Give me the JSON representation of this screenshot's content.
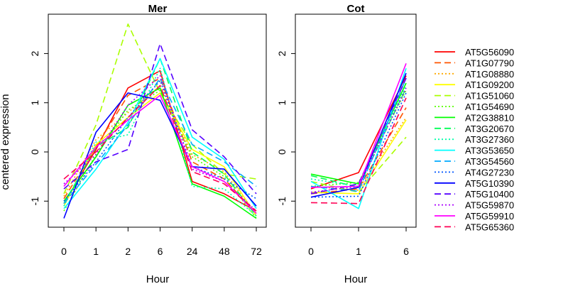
{
  "chart_data": {
    "type": "line",
    "ylabel": "centered expression",
    "xlabel": "Hour",
    "yticks": [
      -1,
      0,
      1,
      2
    ],
    "ylim": [
      -1.53,
      2.8
    ],
    "legend_position": "right",
    "panels": [
      {
        "title": "Mer",
        "x": [
          "0",
          "1",
          "2",
          "6",
          "24",
          "48",
          "72"
        ]
      },
      {
        "title": "Cot",
        "x": [
          "0",
          "1",
          "6"
        ]
      }
    ],
    "series": [
      {
        "name": "AT5G56090",
        "color": "#FF0000",
        "dash": "solid",
        "mer": [
          -1.05,
          0.05,
          1.3,
          1.65,
          -0.6,
          -0.85,
          -1.2
        ],
        "cot": [
          -0.75,
          -0.42,
          1.55
        ]
      },
      {
        "name": "AT1G07790",
        "color": "#FF5500",
        "dash": "dashed",
        "mer": [
          -0.95,
          0.1,
          1.15,
          1.5,
          -0.2,
          -0.55,
          -1.25
        ],
        "cot": [
          -0.85,
          -0.75,
          0.9
        ]
      },
      {
        "name": "AT1G08880",
        "color": "#FFAA00",
        "dash": "dotted",
        "mer": [
          -0.9,
          0.25,
          0.8,
          1.35,
          -0.05,
          -0.4,
          -1.3
        ],
        "cot": [
          -0.7,
          -0.78,
          0.7
        ]
      },
      {
        "name": "AT1G09200",
        "color": "#FFFF00",
        "dash": "solid",
        "mer": [
          -1.1,
          0.15,
          0.7,
          1.2,
          0.05,
          -0.3,
          -1.3
        ],
        "cot": [
          -0.82,
          -0.85,
          0.65
        ]
      },
      {
        "name": "AT1G51060",
        "color": "#AAFF00",
        "dash": "dashed",
        "mer": [
          -0.85,
          0.55,
          2.6,
          1.2,
          0.15,
          -0.45,
          -0.55
        ],
        "cot": [
          -0.6,
          -0.82,
          0.3
        ]
      },
      {
        "name": "AT1G54690",
        "color": "#55FF00",
        "dash": "dotted",
        "mer": [
          -1.2,
          -0.05,
          0.85,
          1.25,
          -0.1,
          -0.5,
          -1.35
        ],
        "cot": [
          -0.7,
          -0.62,
          1.25
        ]
      },
      {
        "name": "AT2G38810",
        "color": "#00FF00",
        "dash": "solid",
        "mer": [
          -1.0,
          -0.1,
          0.95,
          1.3,
          -0.65,
          -0.9,
          -1.35
        ],
        "cot": [
          -0.45,
          -0.65,
          1.4
        ]
      },
      {
        "name": "AT3G20670",
        "color": "#00FF55",
        "dash": "dashed",
        "mer": [
          -1.05,
          0.1,
          0.5,
          1.9,
          0.0,
          -0.45,
          -1.3
        ],
        "cot": [
          -0.48,
          -0.72,
          1.3
        ]
      },
      {
        "name": "AT3G27360",
        "color": "#00FFAA",
        "dash": "dotted",
        "mer": [
          -1.1,
          0.2,
          0.35,
          1.7,
          -0.7,
          -0.75,
          -1.3
        ],
        "cot": [
          -0.55,
          -0.7,
          1.35
        ]
      },
      {
        "name": "AT3G53650",
        "color": "#00FFFF",
        "dash": "solid",
        "mer": [
          -1.15,
          -0.35,
          0.6,
          1.9,
          0.3,
          -0.15,
          -1.15
        ],
        "cot": [
          -0.6,
          -1.15,
          1.7
        ]
      },
      {
        "name": "AT3G54560",
        "color": "#00AAFF",
        "dash": "dashed",
        "mer": [
          -1.05,
          -0.25,
          0.55,
          1.5,
          0.15,
          -0.2,
          -0.7
        ],
        "cot": [
          -0.7,
          -0.8,
          1.5
        ]
      },
      {
        "name": "AT4G27230",
        "color": "#0055FF",
        "dash": "dotted",
        "mer": [
          -1.0,
          -0.2,
          0.7,
          1.45,
          -0.3,
          -0.55,
          -0.95
        ],
        "cot": [
          -0.92,
          -0.9,
          1.2
        ]
      },
      {
        "name": "AT5G10390",
        "color": "#0000FF",
        "dash": "solid",
        "mer": [
          -1.35,
          0.4,
          1.2,
          1.05,
          -0.3,
          -0.35,
          -1.1
        ],
        "cot": [
          -0.92,
          -0.72,
          1.6
        ]
      },
      {
        "name": "AT5G10400",
        "color": "#5500FF",
        "dash": "dashed",
        "mer": [
          -0.75,
          -0.2,
          0.05,
          2.2,
          0.45,
          -0.1,
          -0.85
        ],
        "cot": [
          -0.85,
          -0.65,
          1.5
        ]
      },
      {
        "name": "AT5G59870",
        "color": "#AA00FF",
        "dash": "dotted",
        "mer": [
          -0.65,
          -0.05,
          0.95,
          1.55,
          -0.35,
          -0.6,
          -1.2
        ],
        "cot": [
          -0.82,
          -0.7,
          1.3
        ]
      },
      {
        "name": "AT5G59910",
        "color": "#FF00FF",
        "dash": "solid",
        "mer": [
          -0.7,
          0.1,
          0.65,
          1.15,
          -0.3,
          -0.6,
          -1.25
        ],
        "cot": [
          -0.72,
          -0.7,
          1.8
        ]
      },
      {
        "name": "AT5G65360",
        "color": "#FF0055",
        "dash": "dashed",
        "mer": [
          -0.55,
          0.0,
          0.7,
          1.35,
          -0.4,
          -0.65,
          -1.2
        ],
        "cot": [
          -1.03,
          -1.05,
          1.1
        ]
      }
    ]
  }
}
